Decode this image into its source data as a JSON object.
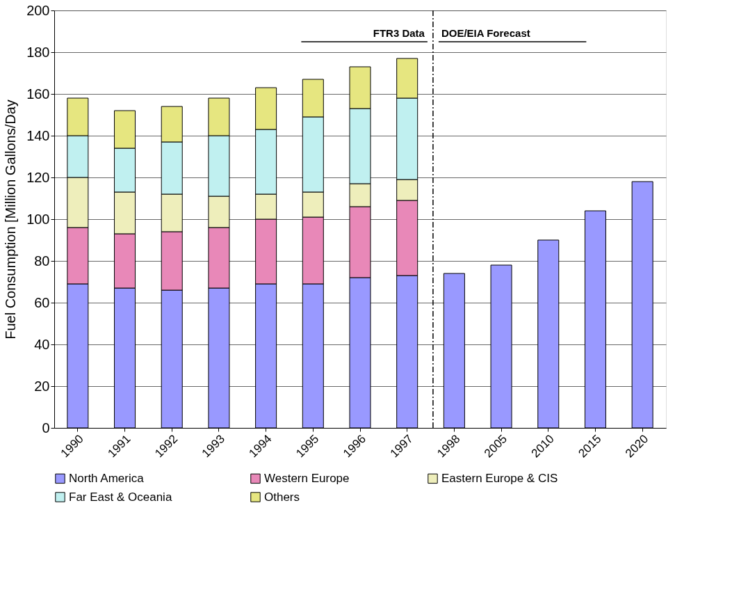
{
  "chart_data": {
    "type": "bar",
    "stacked": true,
    "ylabel": "Fuel Consumption [Million Gallons/Day",
    "categories": [
      "1990",
      "1991",
      "1992",
      "1993",
      "1994",
      "1995",
      "1996",
      "1997",
      "1998",
      "2005",
      "2010",
      "2015",
      "2020"
    ],
    "series": [
      {
        "name": "North America",
        "color": "#9999ff",
        "values": [
          69,
          67,
          66,
          67,
          69,
          69,
          72,
          73,
          74,
          78,
          90,
          104,
          118
        ]
      },
      {
        "name": "Western Europe",
        "color": "#e888b8",
        "values": [
          27,
          26,
          28,
          29,
          31,
          32,
          34,
          36,
          null,
          null,
          null,
          null,
          null
        ]
      },
      {
        "name": "Eastern Europe & CIS",
        "color": "#eeeebb",
        "values": [
          24,
          20,
          18,
          15,
          12,
          12,
          11,
          10,
          null,
          null,
          null,
          null,
          null
        ]
      },
      {
        "name": "Far East & Oceania",
        "color": "#c0f0f0",
        "values": [
          20,
          21,
          25,
          29,
          31,
          36,
          36,
          39,
          null,
          null,
          null,
          null,
          null
        ]
      },
      {
        "name": "Others",
        "color": "#e6e680",
        "values": [
          18,
          18,
          17,
          18,
          20,
          18,
          20,
          19,
          null,
          null,
          null,
          null,
          null
        ]
      }
    ],
    "ylim": [
      0,
      200
    ],
    "yticks": [
      0,
      20,
      40,
      60,
      80,
      100,
      120,
      140,
      160,
      180,
      200
    ],
    "grid": "y",
    "legend": "bottom",
    "ref_lines": [
      {
        "axis": "x",
        "value": "1998",
        "line_style": "dashdot"
      }
    ],
    "annotations": [
      "FTR3 Data",
      "DOE/EIA Forecast"
    ]
  }
}
